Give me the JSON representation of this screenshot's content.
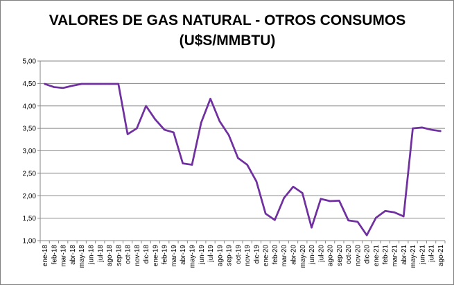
{
  "chart_data": {
    "type": "line",
    "title": "VALORES DE GAS NATURAL - OTROS CONSUMOS",
    "subtitle": "(U$S/MMBTU)",
    "xlabel": "",
    "ylabel": "",
    "ylim": [
      1.0,
      5.0
    ],
    "yticks": [
      "1,00",
      "1,50",
      "2,00",
      "2,50",
      "3,00",
      "3,50",
      "4,00",
      "4,50",
      "5,00"
    ],
    "ytick_values": [
      1.0,
      1.5,
      2.0,
      2.5,
      3.0,
      3.5,
      4.0,
      4.5,
      5.0
    ],
    "grid": true,
    "legend": "none",
    "line_color": "#7030a0",
    "categories": [
      "ene-18",
      "feb-18",
      "mar-18",
      "abr-18",
      "may-18",
      "jun-18",
      "jul-18",
      "ago-18",
      "sep-18",
      "oct-18",
      "nov-18",
      "dic-18",
      "ene-19",
      "feb-19",
      "mar-19",
      "abr-19",
      "may-19",
      "jun-19",
      "jul-19",
      "ago-19",
      "sep-19",
      "oct-19",
      "nov-19",
      "dic-19",
      "ene-20",
      "feb-20",
      "mar-20",
      "abr-20",
      "may-20",
      "jun-20",
      "jul-20",
      "ago-20",
      "sep-20",
      "oct-20",
      "nov-20",
      "dic-20",
      "ene-21",
      "feb-21",
      "mar-21",
      "abr-21",
      "may-21",
      "jun-21",
      "jul-21",
      "ago-21"
    ],
    "values": [
      4.49,
      4.42,
      4.4,
      4.45,
      4.49,
      4.49,
      4.49,
      4.49,
      4.49,
      3.37,
      3.5,
      4.0,
      3.7,
      3.47,
      3.41,
      2.72,
      2.69,
      3.63,
      4.16,
      3.66,
      3.35,
      2.84,
      2.69,
      2.32,
      1.6,
      1.46,
      1.95,
      2.2,
      2.06,
      1.29,
      1.93,
      1.88,
      1.89,
      1.45,
      1.42,
      1.12,
      1.51,
      1.66,
      1.63,
      1.54,
      3.5,
      3.52,
      3.47,
      3.44
    ]
  }
}
